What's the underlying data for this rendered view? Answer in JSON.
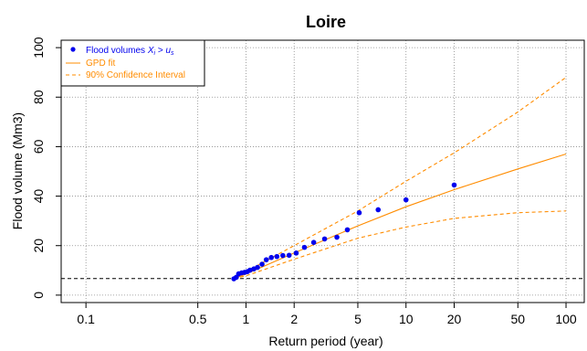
{
  "chart_data": {
    "type": "scatter",
    "title": "Loire",
    "xlabel": "Return period (year)",
    "ylabel": "Flood volume (Mm3)",
    "x_scale": "log",
    "xlim": [
      0.07,
      130
    ],
    "ylim": [
      -3,
      103
    ],
    "x_ticks": [
      {
        "value": 0.1,
        "label": "0.1"
      },
      {
        "value": 0.5,
        "label": "0.5"
      },
      {
        "value": 1,
        "label": "1"
      },
      {
        "value": 2,
        "label": "2"
      },
      {
        "value": 5,
        "label": "5"
      },
      {
        "value": 10,
        "label": "10"
      },
      {
        "value": 20,
        "label": "20"
      },
      {
        "value": 50,
        "label": "50"
      },
      {
        "value": 100,
        "label": "100"
      }
    ],
    "y_ticks": [
      {
        "value": 0,
        "label": "0"
      },
      {
        "value": 20,
        "label": "20"
      },
      {
        "value": 40,
        "label": "40"
      },
      {
        "value": 60,
        "label": "60"
      },
      {
        "value": 80,
        "label": "80"
      },
      {
        "value": 100,
        "label": "100"
      }
    ],
    "grid": true,
    "threshold": {
      "value": 6.7,
      "style": "dashed",
      "color": "#000000"
    },
    "legend": {
      "position": "top-left",
      "entries": [
        {
          "label_main": "Flood volumes ",
          "label_math": "X",
          "label_sub": "i",
          "label_gt": " > ",
          "label_math2": "u",
          "label_sub2": "s",
          "color": "#0000ee",
          "marker": "dot"
        },
        {
          "label": "GPD fit",
          "color": "#ff8c00",
          "marker": "solid"
        },
        {
          "label": "90% Confidence Interval",
          "color": "#ff8c00",
          "marker": "dashed"
        }
      ]
    },
    "series": [
      {
        "name": "Flood volumes",
        "kind": "points",
        "color": "#0000ee",
        "x": [
          0.84,
          0.87,
          0.9,
          0.94,
          0.98,
          1.02,
          1.06,
          1.12,
          1.18,
          1.26,
          1.34,
          1.44,
          1.56,
          1.7,
          1.86,
          2.06,
          2.32,
          2.65,
          3.1,
          3.7,
          4.3,
          5.1,
          6.7,
          10.0,
          20.0
        ],
        "y": [
          6.6,
          7.2,
          8.6,
          9.0,
          9.2,
          9.5,
          10.1,
          10.6,
          11.2,
          12.5,
          14.3,
          15.2,
          15.6,
          16.0,
          16.1,
          17.0,
          19.3,
          21.3,
          22.7,
          23.4,
          26.4,
          33.3,
          34.5,
          38.5,
          44.5
        ]
      },
      {
        "name": "GPD fit",
        "kind": "line",
        "style": "solid",
        "color": "#ff8c00",
        "x": [
          0.84,
          1,
          2,
          5,
          10,
          20,
          50,
          100
        ],
        "y": [
          6.7,
          8.5,
          17.0,
          28.0,
          35.7,
          42.6,
          51.0,
          57.0
        ]
      },
      {
        "name": "90% CI upper",
        "kind": "line",
        "style": "dashed",
        "color": "#ff8c00",
        "x": [
          0.84,
          1,
          2,
          5,
          10,
          20,
          50,
          100
        ],
        "y": [
          6.7,
          9.5,
          20.0,
          34.0,
          46.0,
          57.5,
          74.0,
          88.0
        ]
      },
      {
        "name": "90% CI lower",
        "kind": "line",
        "style": "dashed",
        "color": "#ff8c00",
        "x": [
          0.84,
          1,
          2,
          5,
          10,
          20,
          50,
          100
        ],
        "y": [
          6.7,
          7.8,
          14.5,
          23.0,
          27.5,
          31.0,
          33.3,
          34.0
        ]
      }
    ]
  }
}
